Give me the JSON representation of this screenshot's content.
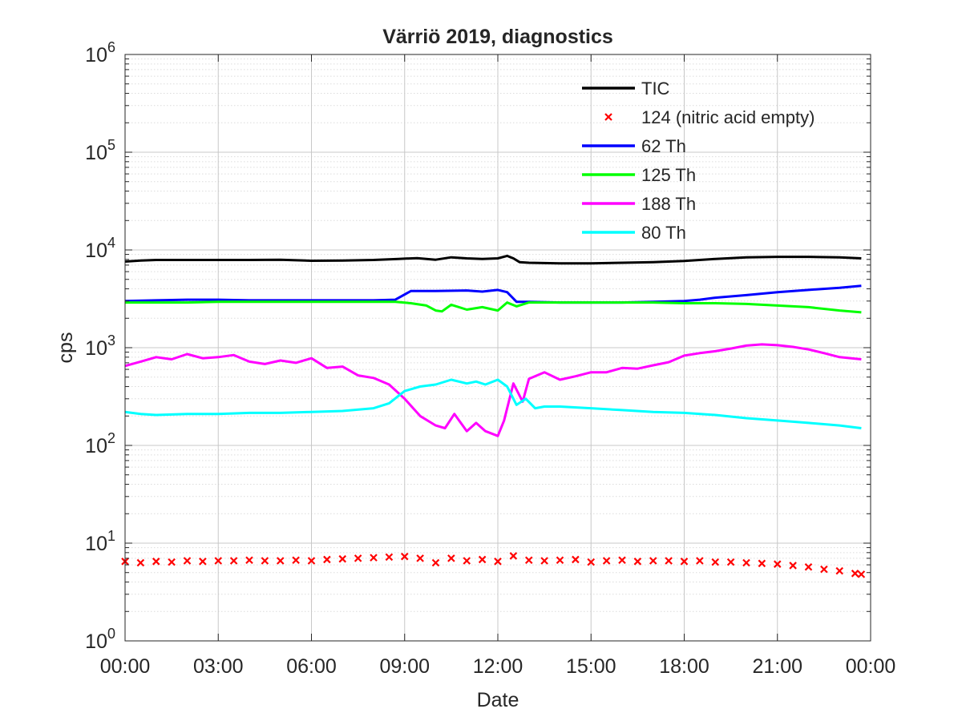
{
  "chart_data": {
    "type": "line",
    "title": "Värriö 2019, diagnostics",
    "xlabel": "Date",
    "ylabel": "cps",
    "yscale": "log",
    "ylim": [
      1,
      1000000
    ],
    "xlim": [
      "00:00",
      "24:00"
    ],
    "x_ticks": [
      "00:00",
      "03:00",
      "06:00",
      "09:00",
      "12:00",
      "15:00",
      "18:00",
      "21:00",
      "00:00"
    ],
    "y_ticks": [
      {
        "base": "10",
        "exp": "0",
        "value": 1
      },
      {
        "base": "10",
        "exp": "1",
        "value": 10
      },
      {
        "base": "10",
        "exp": "2",
        "value": 100
      },
      {
        "base": "10",
        "exp": "3",
        "value": 1000
      },
      {
        "base": "10",
        "exp": "4",
        "value": 10000
      },
      {
        "base": "10",
        "exp": "5",
        "value": 100000
      },
      {
        "base": "10",
        "exp": "6",
        "value": 1000000
      }
    ],
    "grid": true,
    "legend_position": "top-right",
    "x_hours": [
      0,
      1,
      2,
      3,
      4,
      5,
      6,
      7,
      8,
      9,
      10,
      11,
      12,
      13,
      14,
      15,
      16,
      17,
      18,
      19,
      20,
      21,
      22,
      23,
      23.7
    ],
    "series": [
      {
        "name": "TIC",
        "color": "#000000",
        "style": "line",
        "x": [
          0,
          0.5,
          1,
          2,
          3,
          4,
          5,
          6,
          7,
          8,
          8.8,
          9.4,
          10,
          10.5,
          11,
          11.5,
          12,
          12.3,
          12.5,
          12.7,
          13,
          14,
          15,
          16,
          17,
          18,
          19,
          20,
          21,
          22,
          23,
          23.7
        ],
        "y": [
          7600,
          7800,
          7900,
          7900,
          7900,
          7900,
          7950,
          7750,
          7800,
          7900,
          8100,
          8250,
          7950,
          8400,
          8200,
          8100,
          8200,
          8700,
          8200,
          7500,
          7400,
          7300,
          7300,
          7400,
          7500,
          7700,
          8100,
          8400,
          8500,
          8500,
          8400,
          8200
        ]
      },
      {
        "name": "124 (nitric acid empty)",
        "color": "#ff0000",
        "style": "marker",
        "x": [
          0,
          0.5,
          1,
          1.5,
          2,
          2.5,
          3,
          3.5,
          4,
          4.5,
          5,
          5.5,
          6,
          6.5,
          7,
          7.5,
          8,
          8.5,
          9,
          9.5,
          10,
          10.5,
          11,
          11.5,
          12,
          12.5,
          13,
          13.5,
          14,
          14.5,
          15,
          15.5,
          16,
          16.5,
          17,
          17.5,
          18,
          18.5,
          19,
          19.5,
          20,
          20.5,
          21,
          21.5,
          22,
          22.5,
          23,
          23.5,
          23.7
        ],
        "y": [
          6.5,
          6.3,
          6.5,
          6.4,
          6.6,
          6.5,
          6.6,
          6.6,
          6.7,
          6.6,
          6.6,
          6.7,
          6.6,
          6.8,
          6.9,
          7.0,
          7.1,
          7.2,
          7.3,
          7.0,
          6.3,
          7.0,
          6.6,
          6.8,
          6.5,
          7.4,
          6.7,
          6.6,
          6.7,
          6.8,
          6.4,
          6.6,
          6.7,
          6.5,
          6.6,
          6.6,
          6.5,
          6.6,
          6.4,
          6.4,
          6.3,
          6.2,
          6.1,
          5.9,
          5.7,
          5.4,
          5.2,
          4.9,
          4.8
        ]
      },
      {
        "name": "62 Th",
        "color": "#0000ff",
        "style": "line",
        "x": [
          0,
          1,
          2,
          3,
          4,
          5,
          6,
          7,
          8,
          8.7,
          9.2,
          10,
          11,
          11.5,
          12,
          12.3,
          12.6,
          13,
          14,
          15,
          16,
          17,
          18,
          18.5,
          19,
          20,
          21,
          22,
          23,
          23.7
        ],
        "y": [
          3000,
          3050,
          3100,
          3100,
          3050,
          3050,
          3050,
          3050,
          3050,
          3100,
          3800,
          3800,
          3850,
          3750,
          3900,
          3700,
          2950,
          2950,
          2900,
          2900,
          2900,
          2950,
          3000,
          3100,
          3250,
          3450,
          3700,
          3900,
          4100,
          4300
        ]
      },
      {
        "name": "125 Th",
        "color": "#00ff00",
        "style": "line",
        "x": [
          0,
          1,
          2,
          3,
          4,
          5,
          6,
          7,
          8,
          8.7,
          9.2,
          9.7,
          10,
          10.2,
          10.5,
          11,
          11.5,
          12,
          12.3,
          12.6,
          13,
          14,
          15,
          16,
          17,
          18,
          19,
          20,
          21,
          22,
          23,
          23.7
        ],
        "y": [
          2900,
          2900,
          2900,
          2950,
          2950,
          2950,
          2950,
          2950,
          2950,
          2950,
          2850,
          2700,
          2400,
          2350,
          2750,
          2450,
          2600,
          2400,
          2900,
          2650,
          2900,
          2900,
          2900,
          2900,
          2900,
          2850,
          2850,
          2800,
          2700,
          2600,
          2400,
          2300
        ]
      },
      {
        "name": "188 Th",
        "color": "#ff00ff",
        "style": "line",
        "x": [
          0,
          0.5,
          1,
          1.5,
          2,
          2.5,
          3,
          3.5,
          4,
          4.5,
          5,
          5.5,
          6,
          6.5,
          7,
          7.5,
          8,
          8.5,
          9,
          9.5,
          10,
          10.3,
          10.6,
          11,
          11.3,
          11.6,
          12,
          12.2,
          12.5,
          12.8,
          13,
          13.5,
          14,
          14.5,
          15,
          15.5,
          16,
          16.5,
          17,
          17.5,
          18,
          18.5,
          19,
          19.5,
          20,
          20.5,
          21,
          21.5,
          22,
          22.5,
          23,
          23.7
        ],
        "y": [
          650,
          720,
          800,
          760,
          860,
          780,
          800,
          840,
          720,
          680,
          740,
          700,
          780,
          620,
          640,
          520,
          490,
          420,
          300,
          200,
          160,
          150,
          210,
          140,
          170,
          140,
          125,
          180,
          430,
          280,
          480,
          560,
          470,
          510,
          560,
          560,
          620,
          610,
          660,
          710,
          830,
          880,
          920,
          980,
          1050,
          1080,
          1060,
          1020,
          960,
          880,
          800,
          760
        ]
      },
      {
        "name": "80 Th",
        "color": "#00ffff",
        "style": "line",
        "x": [
          0,
          0.5,
          1,
          2,
          3,
          4,
          5,
          6,
          7,
          8,
          8.5,
          9,
          9.5,
          10,
          10.5,
          11,
          11.3,
          11.6,
          12,
          12.3,
          12.6,
          12.9,
          13.2,
          13.5,
          14,
          15,
          16,
          17,
          18,
          19,
          20,
          21,
          22,
          23,
          23.7
        ],
        "y": [
          220,
          210,
          205,
          210,
          210,
          215,
          215,
          220,
          225,
          240,
          270,
          360,
          400,
          420,
          470,
          430,
          450,
          420,
          470,
          400,
          260,
          300,
          240,
          250,
          250,
          240,
          230,
          220,
          215,
          205,
          190,
          180,
          170,
          160,
          150
        ]
      }
    ]
  }
}
